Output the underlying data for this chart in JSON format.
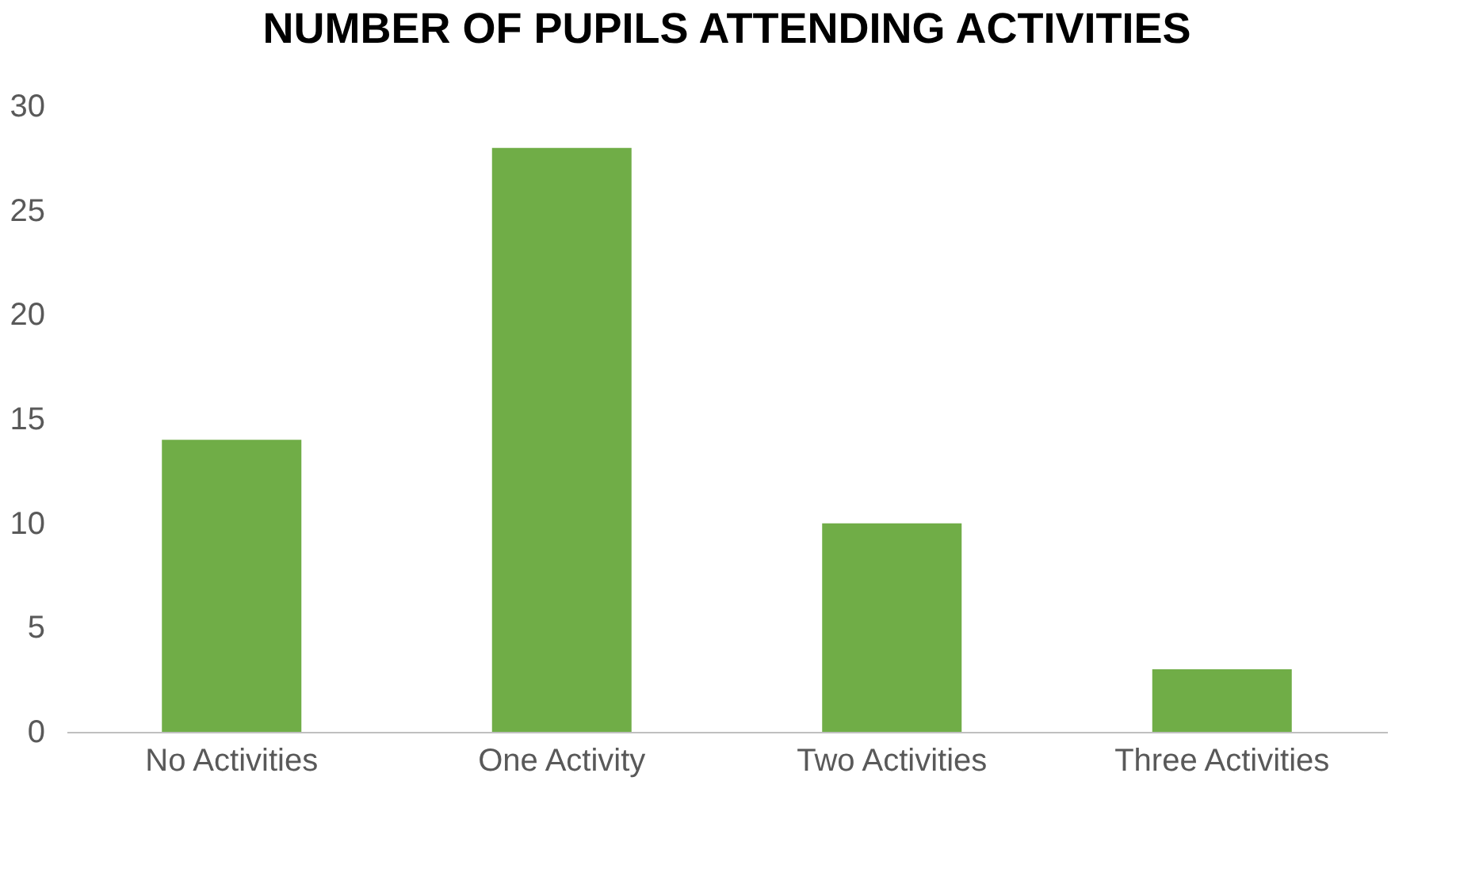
{
  "chart_data": {
    "type": "bar",
    "title": "NUMBER OF PUPILS ATTENDING ACTIVITIES",
    "categories": [
      "No Activities",
      "One Activity",
      "Two Activities",
      "Three Activities"
    ],
    "values": [
      14,
      28,
      10,
      3
    ],
    "color": "#70ad47",
    "ylim": [
      0,
      30
    ],
    "yticks": [
      0,
      5,
      10,
      15,
      20,
      25,
      30
    ],
    "grid": false
  }
}
